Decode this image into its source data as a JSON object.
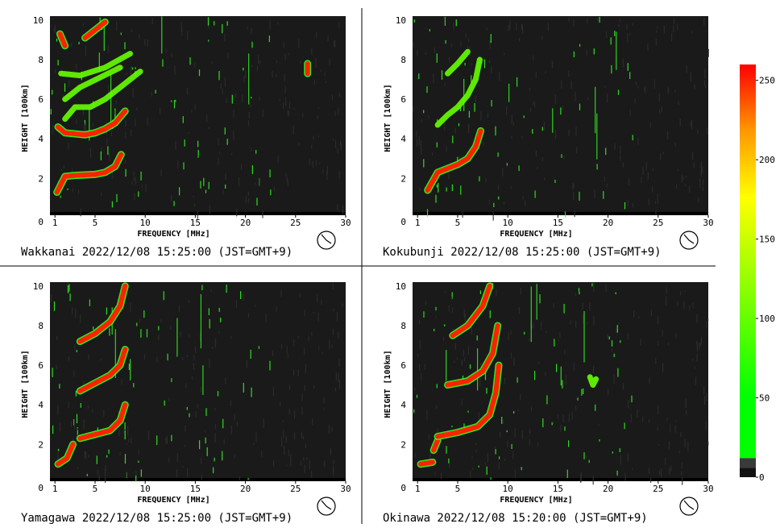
{
  "chart_data": [
    {
      "type": "heatmap",
      "station": "Wakkanai",
      "caption": "Wakkanai 2022/12/08 15:25:00 (JST=GMT+9)",
      "xlabel": "FREQUENCY [MHz]",
      "ylabel": "HEIGHT [100km]",
      "xlim": [
        0.5,
        30
      ],
      "ylim": [
        0.3,
        10.2
      ],
      "xticks": [
        "1",
        "5",
        "10",
        "15",
        "20",
        "25",
        "30"
      ],
      "yticks": [
        "0",
        "2",
        "4",
        "6",
        "8",
        "10"
      ],
      "traces": [
        {
          "level": "high",
          "points": [
            [
              1.2,
              1.3
            ],
            [
              2,
              2.1
            ],
            [
              3,
              2.15
            ],
            [
              5,
              2.2
            ],
            [
              6,
              2.3
            ],
            [
              7,
              2.6
            ],
            [
              7.6,
              3.2
            ]
          ]
        },
        {
          "level": "high",
          "points": [
            [
              1.3,
              4.6
            ],
            [
              2,
              4.3
            ],
            [
              4,
              4.2
            ],
            [
              5,
              4.3
            ],
            [
              6,
              4.5
            ],
            [
              7,
              4.8
            ],
            [
              8,
              5.4
            ]
          ]
        },
        {
          "level": "high",
          "points": [
            [
              1.5,
              9.3
            ],
            [
              2,
              8.7
            ]
          ]
        },
        {
          "level": "high",
          "points": [
            [
              4,
              9.1
            ],
            [
              5,
              9.5
            ],
            [
              6,
              9.9
            ]
          ]
        },
        {
          "level": "high",
          "points": [
            [
              26.2,
              7.3
            ],
            [
              26.2,
              7.8
            ]
          ]
        },
        {
          "level": "mid",
          "points": [
            [
              2,
              5.0
            ],
            [
              3,
              5.6
            ],
            [
              4.5,
              5.6
            ],
            [
              6,
              6.0
            ],
            [
              8,
              6.8
            ],
            [
              9.5,
              7.4
            ]
          ]
        },
        {
          "level": "mid",
          "points": [
            [
              2,
              6.0
            ],
            [
              3.5,
              6.6
            ],
            [
              5.5,
              7.1
            ],
            [
              7.5,
              7.6
            ]
          ]
        },
        {
          "level": "mid",
          "points": [
            [
              1.6,
              7.3
            ],
            [
              3.5,
              7.2
            ],
            [
              6,
              7.6
            ],
            [
              8.5,
              8.3
            ]
          ]
        }
      ]
    },
    {
      "type": "heatmap",
      "station": "Kokubunji",
      "caption": "Kokubunji 2022/12/08 15:25:00 (JST=GMT+9)",
      "xlabel": "FREQUENCY [MHz]",
      "ylabel": "HEIGHT [100km]",
      "xlim": [
        0.5,
        30
      ],
      "ylim": [
        0.3,
        10.2
      ],
      "xticks": [
        "1",
        "5",
        "10",
        "15",
        "20",
        "25",
        "30"
      ],
      "yticks": [
        "0",
        "2",
        "4",
        "6",
        "8",
        "10"
      ],
      "traces": [
        {
          "level": "high",
          "points": [
            [
              2,
              1.4
            ],
            [
              3,
              2.3
            ],
            [
              4,
              2.5
            ],
            [
              5,
              2.7
            ],
            [
              6,
              3.0
            ],
            [
              6.8,
              3.6
            ],
            [
              7.3,
              4.4
            ]
          ]
        },
        {
          "level": "mid",
          "points": [
            [
              3,
              4.7
            ],
            [
              4,
              5.2
            ],
            [
              5,
              5.6
            ],
            [
              6,
              6.2
            ],
            [
              6.8,
              7.0
            ],
            [
              7.2,
              8.0
            ]
          ]
        },
        {
          "level": "mid",
          "points": [
            [
              4,
              7.3
            ],
            [
              5,
              7.8
            ],
            [
              6,
              8.4
            ]
          ]
        }
      ]
    },
    {
      "type": "heatmap",
      "station": "Yamagawa",
      "caption": "Yamagawa 2022/12/08 15:25:00 (JST=GMT+9)",
      "xlabel": "FREQUENCY [MHz]",
      "ylabel": "HEIGHT [100km]",
      "xlim": [
        0.5,
        30
      ],
      "ylim": [
        0.3,
        10.2
      ],
      "xticks": [
        "1",
        "5",
        "10",
        "15",
        "20",
        "25",
        "30"
      ],
      "yticks": [
        "0",
        "2",
        "4",
        "6",
        "8",
        "10"
      ],
      "traces": [
        {
          "level": "high",
          "points": [
            [
              1.3,
              1.0
            ],
            [
              2.2,
              1.3
            ],
            [
              2.8,
              2.0
            ]
          ]
        },
        {
          "level": "high",
          "points": [
            [
              3.5,
              2.3
            ],
            [
              5,
              2.5
            ],
            [
              6.5,
              2.7
            ],
            [
              7.5,
              3.2
            ],
            [
              8,
              4.0
            ]
          ]
        },
        {
          "level": "high",
          "points": [
            [
              3.5,
              4.7
            ],
            [
              5,
              5.1
            ],
            [
              6.5,
              5.5
            ],
            [
              7.5,
              6.0
            ],
            [
              8,
              6.8
            ]
          ]
        },
        {
          "level": "high",
          "points": [
            [
              3.5,
              7.2
            ],
            [
              5,
              7.6
            ],
            [
              6.5,
              8.2
            ],
            [
              7.5,
              9.0
            ],
            [
              8,
              10.0
            ]
          ]
        }
      ]
    },
    {
      "type": "heatmap",
      "station": "Okinawa",
      "caption": "Okinawa 2022/12/08 15:20:00 (JST=GMT+9)",
      "xlabel": "FREQUENCY [MHz]",
      "ylabel": "HEIGHT [100km]",
      "xlim": [
        0.5,
        30
      ],
      "ylim": [
        0.3,
        10.2
      ],
      "xticks": [
        "1",
        "5",
        "10",
        "15",
        "20",
        "25",
        "30"
      ],
      "yticks": [
        "0",
        "2",
        "4",
        "6",
        "8",
        "10"
      ],
      "traces": [
        {
          "level": "high",
          "points": [
            [
              1.3,
              1.0
            ],
            [
              2.5,
              1.1
            ]
          ]
        },
        {
          "level": "high",
          "points": [
            [
              2.6,
              1.7
            ],
            [
              3,
              2.2
            ]
          ]
        },
        {
          "level": "high",
          "points": [
            [
              3,
              2.4
            ],
            [
              5,
              2.6
            ],
            [
              7,
              2.9
            ],
            [
              8.2,
              3.5
            ],
            [
              8.8,
              4.6
            ],
            [
              9.1,
              6.0
            ]
          ]
        },
        {
          "level": "high",
          "points": [
            [
              4,
              5.0
            ],
            [
              6,
              5.2
            ],
            [
              7.5,
              5.7
            ],
            [
              8.5,
              6.6
            ],
            [
              9,
              8.0
            ]
          ]
        },
        {
          "level": "high",
          "points": [
            [
              4.5,
              7.5
            ],
            [
              6,
              8.0
            ],
            [
              7.5,
              9.0
            ],
            [
              8.2,
              10.0
            ]
          ]
        },
        {
          "level": "mid",
          "points": [
            [
              18.2,
              5.4
            ],
            [
              18.5,
              5.0
            ],
            [
              18.8,
              5.3
            ]
          ]
        }
      ]
    }
  ],
  "colorbar": {
    "ticks": [
      "250",
      "200",
      "150",
      "100",
      "50",
      "0"
    ],
    "tick_values": [
      250,
      200,
      150,
      100,
      50,
      0
    ],
    "range": [
      0,
      260
    ]
  },
  "colors": {
    "background": "#1a1a1a",
    "noise": "#2e2e2e",
    "low": "#33ff22",
    "mid": "#66ff00",
    "high": "#ff2200",
    "high_edge": "#ff8800"
  }
}
